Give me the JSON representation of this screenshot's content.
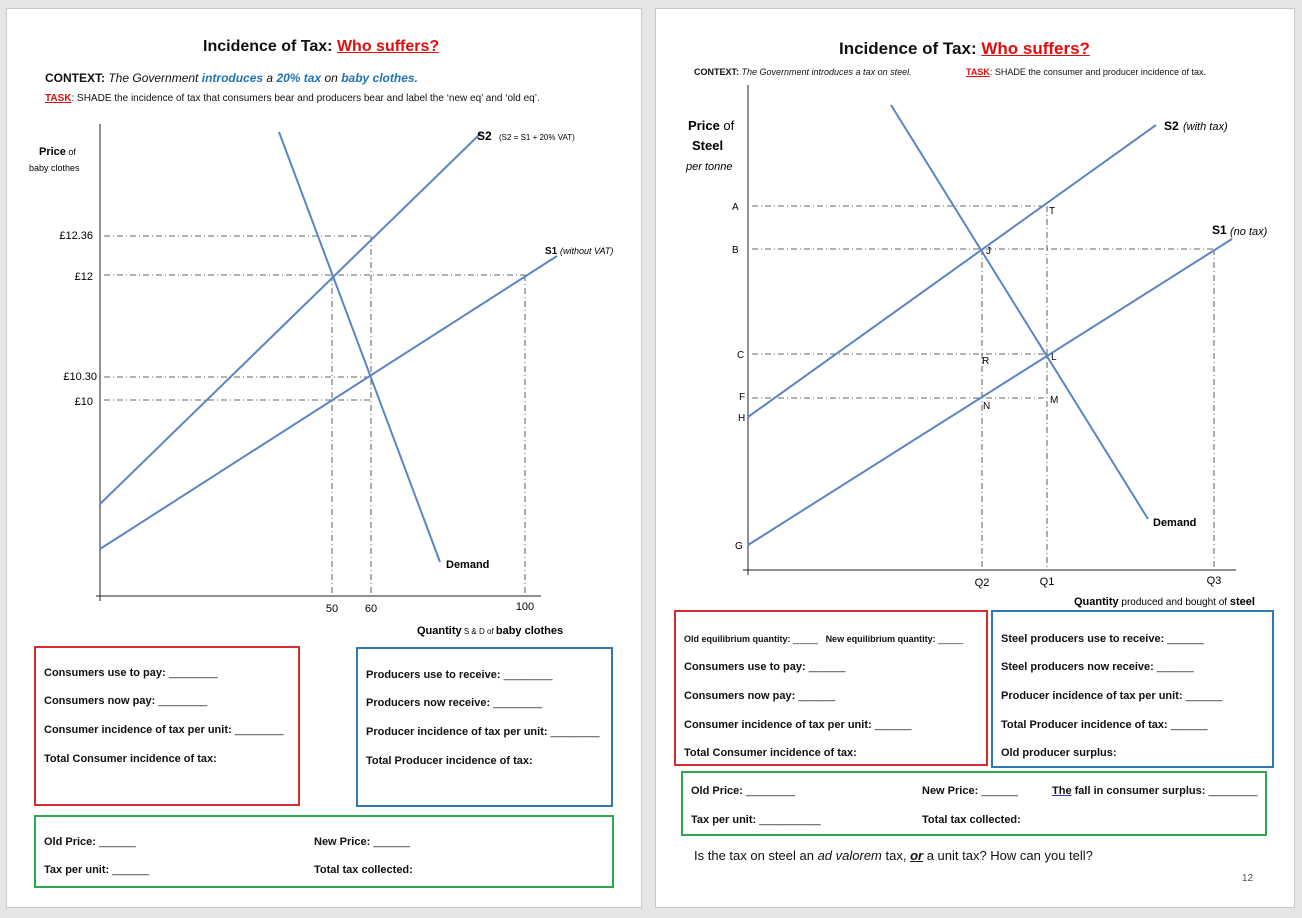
{
  "left": {
    "title_a": "Incidence of Tax: ",
    "title_b": "Who suffers?",
    "context_label": "CONTEXT:",
    "context_t1": "The Government",
    "context_t2": "introduces",
    "context_t3": "a",
    "context_t4": "20% tax",
    "context_t5": "on",
    "context_t6": "baby clothes.",
    "task_label": "TASK",
    "task_text": ": SHADE the incidence of tax that consumers bear and producers bear and label the ‘new eq’ and ‘old eq’.",
    "chart": {
      "ylabel_price": "Price",
      "ylabel_of": " of",
      "ylabel_item": "baby clothes",
      "ticks_y": [
        "£12.36",
        "£12",
        "£10.30",
        "£10"
      ],
      "ticks_x": [
        "50",
        "60",
        "100"
      ],
      "s2_label": "S2",
      "s2_note": "(S2 = S1 + 20% VAT)",
      "s1_label": "S1",
      "s1_note": "(without VAT)",
      "demand_label": "Demand",
      "xlabel_a": "Quantity",
      "xlabel_b": " S & D of ",
      "xlabel_c": "baby clothes"
    },
    "consumer_box": [
      {
        "label": "Consumers use to pay:",
        "blank": "________"
      },
      {
        "label": "Consumers now pay:",
        "blank": "________"
      },
      {
        "label": "Consumer incidence of tax per unit:",
        "blank": "________"
      },
      {
        "label": "Total Consumer incidence of tax:",
        "blank": ""
      }
    ],
    "producer_box": [
      {
        "label": "Producers use to receive:",
        "blank": "________"
      },
      {
        "label": "Producers now receive:",
        "blank": "________"
      },
      {
        "label": "Producer incidence of tax per unit:",
        "blank": "________"
      },
      {
        "label": "Total Producer incidence of tax:",
        "blank": ""
      }
    ],
    "green_box": {
      "old_price": "Old Price:",
      "old_price_blank": "______",
      "new_price": "New Price:",
      "new_price_blank": "______",
      "tax_per_unit": "Tax per unit:",
      "tax_per_unit_blank": "______",
      "total_tax": "Total tax collected:"
    }
  },
  "right": {
    "title_a": "Incidence of Tax: ",
    "title_b": "Who suffers?",
    "context_label": "CONTEXT:",
    "context_text": " The Government introduces a tax on steel.",
    "task_label": "TASK",
    "task_text": ": SHADE the consumer and producer incidence of tax.",
    "chart": {
      "ylabel_price": "Price",
      "ylabel_of": " of",
      "ylabel_item": "Steel",
      "ylabel_unit": "per tonne",
      "ticks_y": [
        "A",
        "B",
        "C",
        "F",
        "H",
        "G"
      ],
      "points": [
        "T",
        "J",
        "R",
        "L",
        "N",
        "M"
      ],
      "ticks_x": [
        "Q2",
        "Q1",
        "Q3"
      ],
      "s2_label": "S2",
      "s2_note": "(with tax)",
      "s1_label": "S1",
      "s1_note": "(no tax)",
      "demand_label": "Demand",
      "xlabel_a": "Quantity",
      "xlabel_b": " produced and bought of ",
      "xlabel_c": "steel"
    },
    "consumer_box": {
      "old_eq": "Old equilibrium quantity:",
      "old_eq_blank": "_____",
      "new_eq": "New equilibrium quantity:",
      "new_eq_blank": "_____",
      "rows": [
        {
          "label": "Consumers use to pay:",
          "blank": "______"
        },
        {
          "label": "Consumers now pay:",
          "blank": "______"
        },
        {
          "label": "Consumer incidence of tax per unit:",
          "blank": "______"
        },
        {
          "label": "Total Consumer incidence of tax:",
          "blank": ""
        }
      ]
    },
    "producer_box": [
      {
        "label": "Steel producers use to receive:",
        "blank": "______"
      },
      {
        "label": "Steel producers now receive:",
        "blank": "______"
      },
      {
        "label": "Producer incidence of tax per unit:",
        "blank": "______"
      },
      {
        "label": "Total Producer incidence of tax:",
        "blank": "______"
      },
      {
        "label": "Old producer surplus:",
        "blank": ""
      }
    ],
    "green_box": {
      "old_price": "Old Price:",
      "old_price_blank": "________",
      "new_price": "New Price:",
      "new_price_blank": "______",
      "fall_a": "The",
      "fall_b": " fall in consumer surplus:",
      "fall_blank": "________",
      "tax_per_unit": "Tax per unit:",
      "tax_per_unit_blank": "__________",
      "total_tax": "Total tax collected:"
    },
    "question_a": "Is the tax on steel an ",
    "question_b": "ad valorem",
    "question_c": " tax, ",
    "question_d": "or",
    "question_e": " a unit tax? How can you tell?",
    "page_number": "12"
  },
  "colors": {
    "line": "#5b85c2",
    "red": "#e10d0d",
    "blue_text": "#1f74b4",
    "border_red": "#d32d2d",
    "border_blue": "#2f78b6",
    "border_green": "#2ea84e"
  }
}
